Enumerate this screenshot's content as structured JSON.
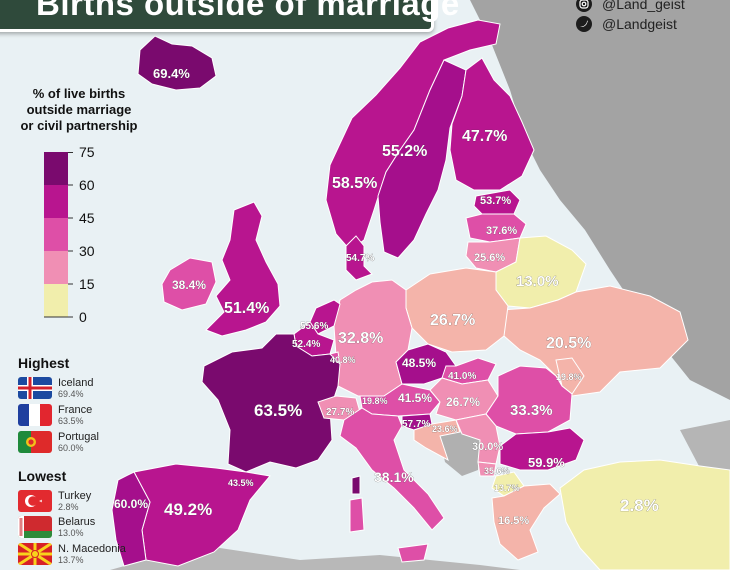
{
  "title": "Births outside of marriage",
  "social": {
    "instagram": "@Land_geist",
    "twitter": "@Landgeist"
  },
  "legend": {
    "title_lines": [
      "% of live births",
      "outside marriage",
      "or civil partnership"
    ],
    "ticks": [
      "75",
      "60",
      "45",
      "30",
      "15",
      "0"
    ],
    "colors": [
      "#7a0a6e",
      "#b8158f",
      "#de4fa7",
      "#f08fb4",
      "#f4b4aa",
      "#f1eeac"
    ]
  },
  "highest": {
    "label": "Highest",
    "items": [
      {
        "country": "Iceland",
        "value": "69.4%"
      },
      {
        "country": "France",
        "value": "63.5%"
      },
      {
        "country": "Portugal",
        "value": "60.0%"
      }
    ]
  },
  "lowest": {
    "label": "Lowest",
    "items": [
      {
        "country": "Turkey",
        "value": "2.8%"
      },
      {
        "country": "Belarus",
        "value": "13.0%"
      },
      {
        "country": "N. Macedonia",
        "value": "13.7%"
      }
    ]
  },
  "map_labels": {
    "iceland": "69.4%",
    "norway": "55.2%",
    "sweden": "58.5%",
    "finland": "47.7%",
    "estonia": "53.7%",
    "latvia": "37.6%",
    "lithuania": "25.6%",
    "denmark": "54.7%",
    "ireland": "38.4%",
    "uk": "51.4%",
    "netherlands": "55.6%",
    "belgium": "52.4%",
    "luxembourg": "40.8%",
    "germany": "32.8%",
    "poland": "26.7%",
    "belarus": "13.0%",
    "ukraine": "20.5%",
    "czechia": "48.5%",
    "slovakia": "41.0%",
    "austria": "41.5%",
    "switzerland": "27.7%",
    "liechtenstein": "19.8%",
    "hungary": "26.7%",
    "romania": "33.3%",
    "moldova": "19.8%",
    "slovenia": "57.7%",
    "croatia": "23.6%",
    "serbia": "30.0%",
    "bulgaria": "59.9%",
    "montenegro": "35.6%",
    "north_macedonia": "13.7%",
    "greece": "16.5%",
    "france": "63.5%",
    "andorra": "43.5%",
    "spain": "49.2%",
    "portugal": "60.0%",
    "italy": "38.1%",
    "turkey": "2.8%"
  }
}
